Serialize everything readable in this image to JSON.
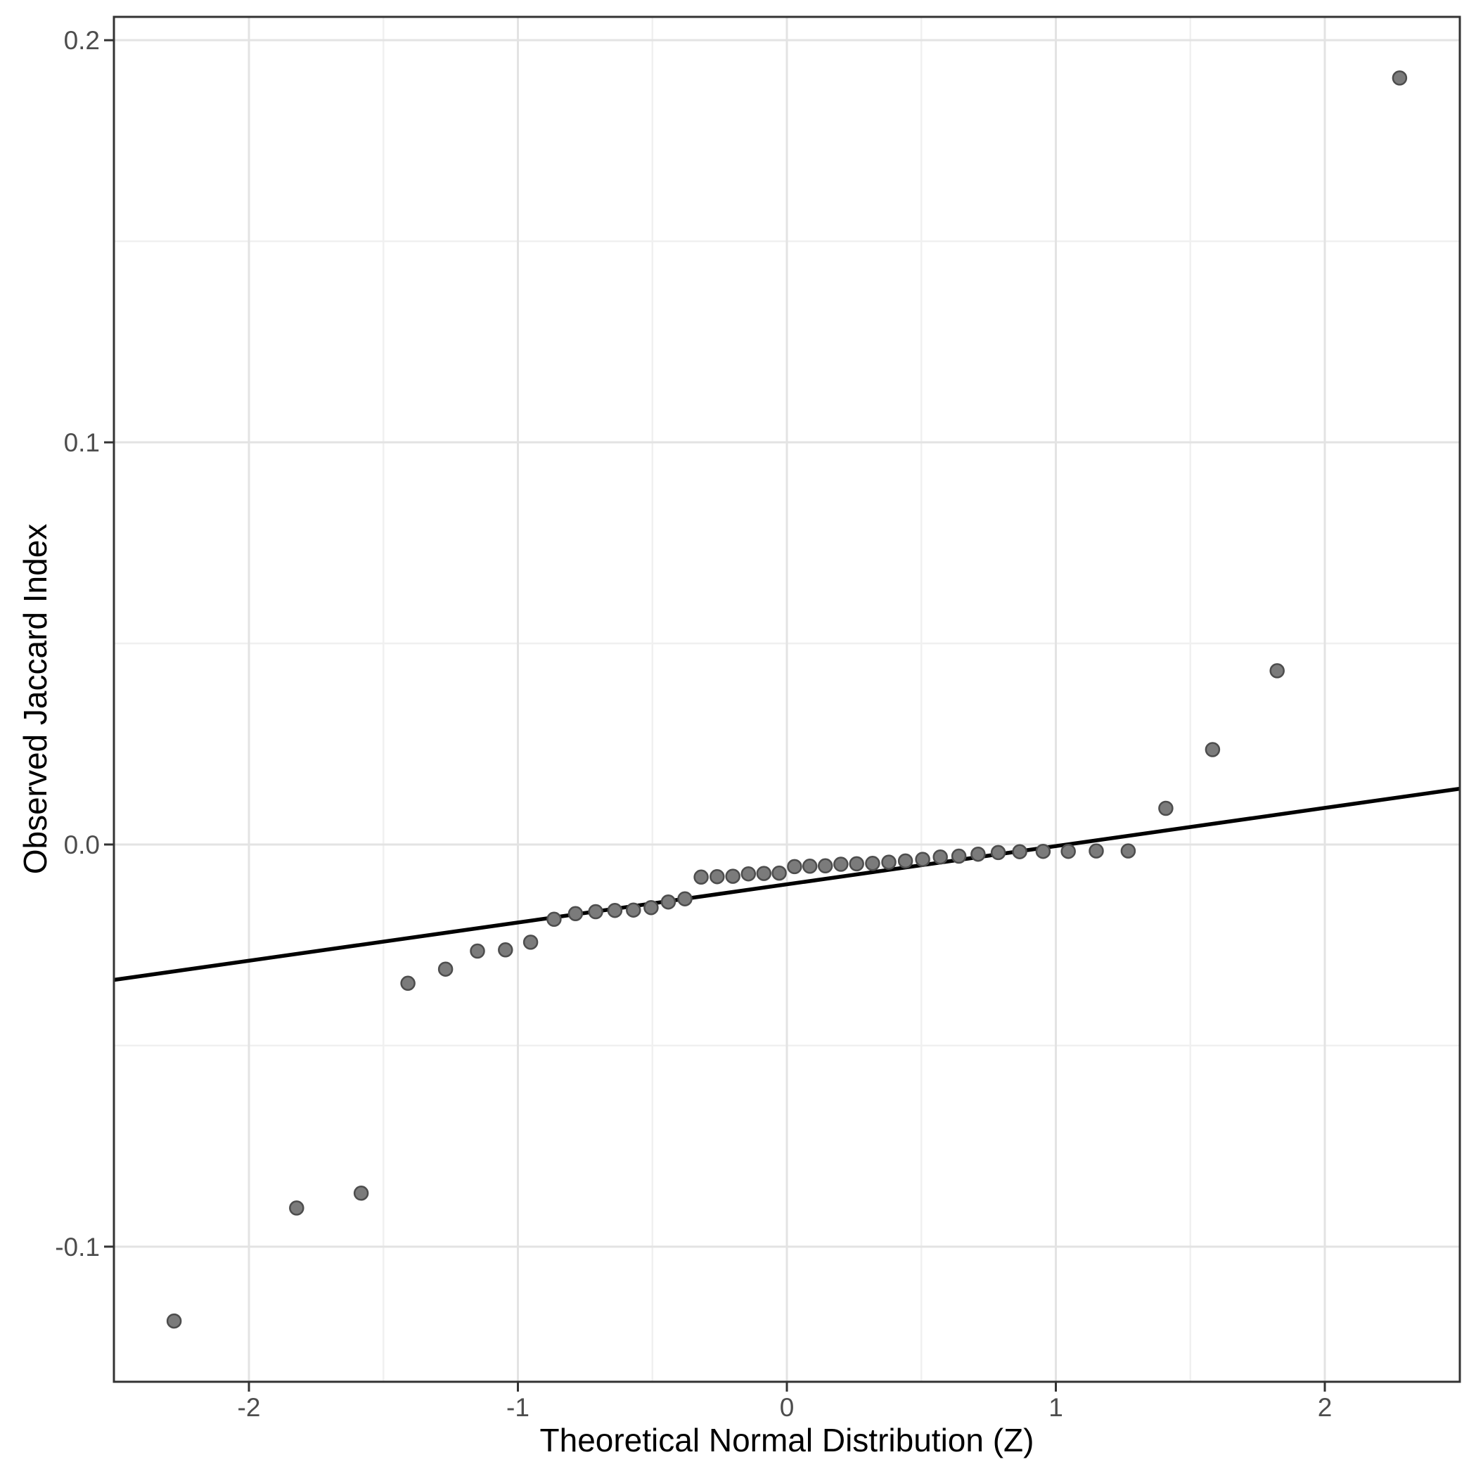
{
  "chart_data": {
    "type": "scatter",
    "title": "",
    "xlabel": "Theoretical Normal Distribution (Z)",
    "ylabel": "Observed Jaccard Index",
    "legend_position": "none",
    "grid": true,
    "xlim": [
      -2.502,
      2.502
    ],
    "ylim": [
      -0.1336,
      0.2058
    ],
    "x_ticks": [
      {
        "value": -2,
        "label": "-2"
      },
      {
        "value": -1,
        "label": "-1"
      },
      {
        "value": 0,
        "label": "0"
      },
      {
        "value": 1,
        "label": "1"
      },
      {
        "value": 2,
        "label": "2"
      }
    ],
    "y_ticks": [
      {
        "value": 0.2,
        "label": "0.2"
      },
      {
        "value": 0.1,
        "label": "0.1"
      },
      {
        "value": 0.0,
        "label": "0.0"
      },
      {
        "value": -0.1,
        "label": "-0.1"
      }
    ],
    "x_minor_gridlines": [
      -1.5,
      -0.5,
      0.5,
      1.5
    ],
    "y_minor_gridlines": [
      0.15,
      0.05,
      -0.05
    ],
    "points": {
      "x": [
        -2.2782,
        -1.8229,
        -1.5829,
        -1.4088,
        -1.269,
        -1.1503,
        -1.0463,
        -0.9527,
        -0.8657,
        -0.7859,
        -0.7108,
        -0.6395,
        -0.5705,
        -0.5049,
        -0.4407,
        -0.3791,
        -0.3186,
        -0.2593,
        -0.2008,
        -0.1429,
        -0.0855,
        -0.0285,
        0.0285,
        0.0855,
        0.1429,
        0.2008,
        0.2593,
        0.3186,
        0.3791,
        0.4407,
        0.5049,
        0.5705,
        0.6395,
        0.7108,
        0.7859,
        0.8657,
        0.9527,
        1.0463,
        1.1503,
        1.269,
        1.4088,
        1.5829,
        1.8229,
        2.2782
      ],
      "y": [
        -0.1185,
        -0.0904,
        -0.0867,
        -0.0345,
        -0.031,
        -0.0265,
        -0.0262,
        -0.0243,
        -0.0186,
        -0.0172,
        -0.0167,
        -0.0164,
        -0.0163,
        -0.0157,
        -0.0143,
        -0.0135,
        -0.0081,
        -0.008,
        -0.0079,
        -0.0073,
        -0.0072,
        -0.0071,
        -0.0055,
        -0.0054,
        -0.0053,
        -0.0049,
        -0.0048,
        -0.0047,
        -0.0044,
        -0.0041,
        -0.0037,
        -0.0031,
        -0.0029,
        -0.0024,
        -0.002,
        -0.0018,
        -0.0017,
        -0.0017,
        -0.0016,
        -0.0016,
        0.009,
        0.0236,
        0.0432,
        0.1906
      ]
    },
    "reference_line": {
      "slope": 0.0095,
      "intercept": -0.0099
    },
    "colors": {
      "background": "#ffffff",
      "panel_background": "#ffffff",
      "grid_major": "#e3e3e3",
      "grid_minor": "#f0f0f0",
      "panel_border": "#333333",
      "tick_mark": "#333333",
      "tick_label": "#4d4d4d",
      "axis_title": "#000000",
      "point_fill": "#7b7b7b",
      "point_stroke": "#4d4d4d",
      "reference_line": "#000000"
    }
  }
}
